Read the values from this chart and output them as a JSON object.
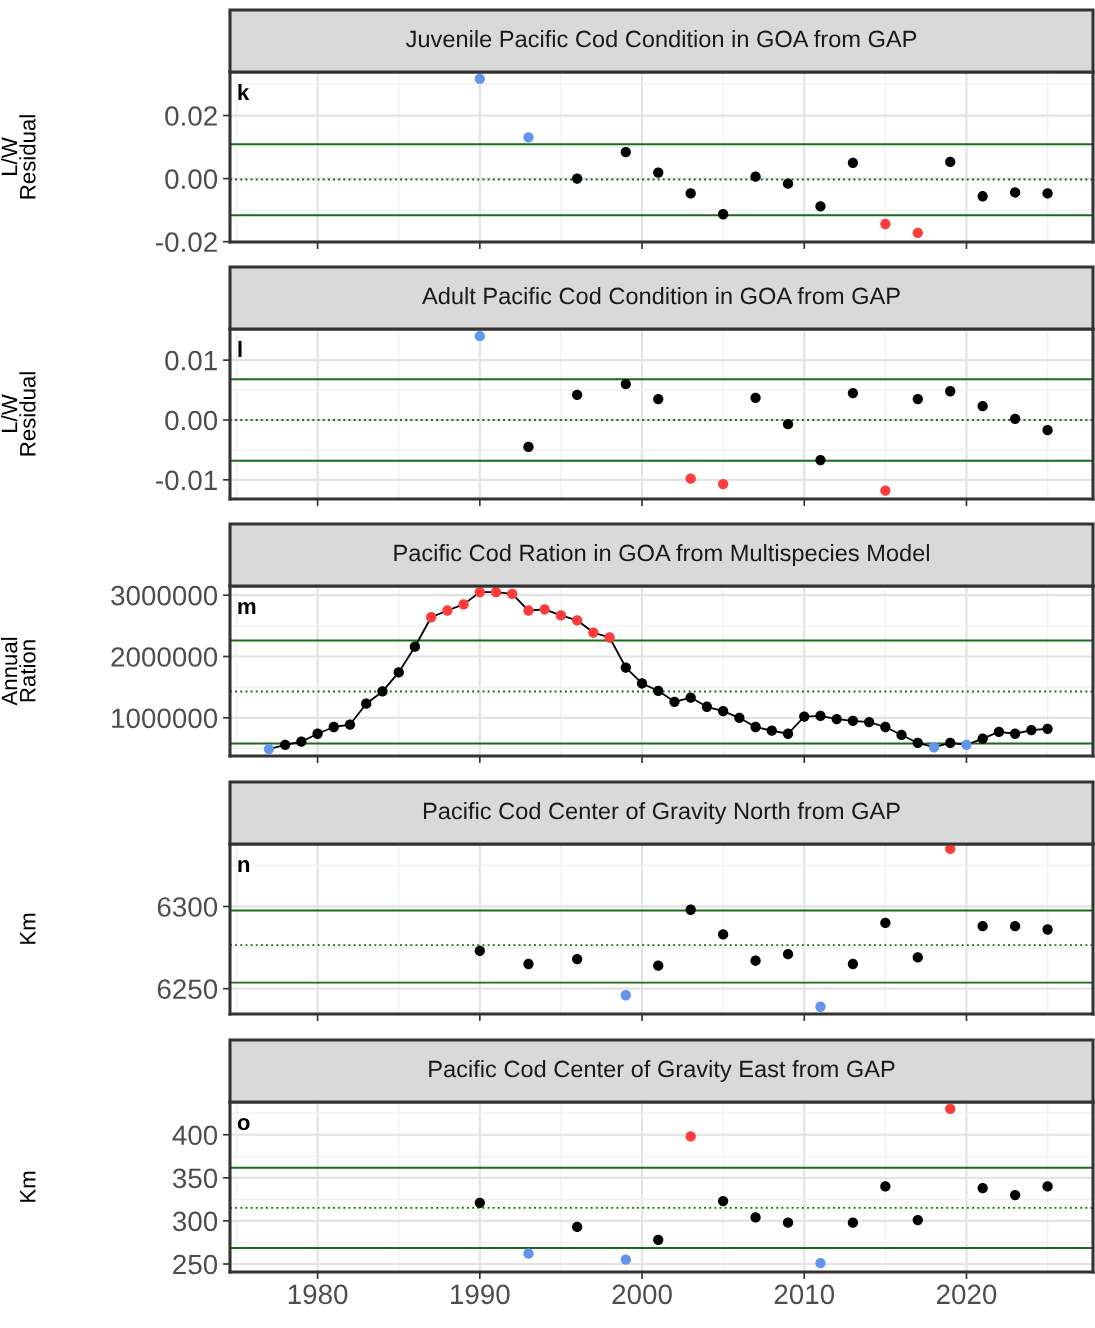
{
  "chart_data": [
    {
      "type": "scatter",
      "title": "Juvenile Pacific Cod Condition in GOA from GAP",
      "ylabel": "L/W\nResidual",
      "annotations": [
        "k"
      ],
      "x": [
        1990,
        1993,
        1996,
        1999,
        2001,
        2003,
        2005,
        2007,
        2009,
        2011,
        2013,
        2015,
        2017,
        2019,
        2021,
        2023,
        2025
      ],
      "series": [
        {
          "values": [
            0.0316,
            0.0131,
            0.0,
            0.0084,
            0.0019,
            -0.0047,
            -0.0113,
            0.0006,
            -0.0016,
            -0.0088,
            0.005,
            -0.0144,
            -0.0172,
            0.0053,
            -0.0056,
            -0.0044,
            -0.0047
          ],
          "colors": [
            "#6495ed",
            "#6495ed",
            "#000000",
            "#000000",
            "#000000",
            "#000000",
            "#000000",
            "#000000",
            "#000000",
            "#000000",
            "#000000",
            "#ff3b3b",
            "#ff3b3b",
            "#000000",
            "#000000",
            "#000000",
            "#000000"
          ]
        }
      ],
      "xlim": [
        1974.6,
        2027.8
      ],
      "xticks": [
        1980,
        1990,
        2000,
        2010,
        2020
      ],
      "ylim": [
        -0.0201,
        0.0338
      ],
      "yticks": [
        {
          "value": -0.02,
          "label": "-0.02"
        },
        {
          "value": 0.0,
          "label": "0.00"
        },
        {
          "value": 0.02,
          "label": "0.02"
        }
      ],
      "ref_lines": [
        {
          "axis": "y",
          "value": 0.0109,
          "color": "#1a6b1a",
          "line_style": "solid"
        },
        {
          "axis": "y",
          "value": -0.0003,
          "color": "#1a6b1a",
          "line_style": "dotted"
        },
        {
          "axis": "y",
          "value": -0.0116,
          "color": "#1a6b1a",
          "line_style": "solid"
        }
      ],
      "grid": true,
      "marker": "circle",
      "tick_labels": "y"
    },
    {
      "type": "scatter",
      "title": "Adult Pacific Cod Condition in GOA from GAP",
      "ylabel": "L/W\nResidual",
      "annotations": [
        "l"
      ],
      "x": [
        1990,
        1993,
        1996,
        1999,
        2001,
        2003,
        2005,
        2007,
        2009,
        2011,
        2013,
        2015,
        2017,
        2019,
        2021,
        2023,
        2025
      ],
      "series": [
        {
          "values": [
            0.014,
            -0.0045,
            0.0042,
            0.006,
            0.0035,
            -0.0098,
            -0.0107,
            0.0037,
            -0.0007,
            -0.0067,
            0.0045,
            -0.0118,
            0.0035,
            0.0048,
            0.0023,
            0.0002,
            -0.0017
          ],
          "colors": [
            "#6495ed",
            "#000000",
            "#000000",
            "#000000",
            "#000000",
            "#ff3b3b",
            "#ff3b3b",
            "#000000",
            "#000000",
            "#000000",
            "#000000",
            "#ff3b3b",
            "#000000",
            "#000000",
            "#000000",
            "#000000",
            "#000000"
          ]
        }
      ],
      "xlim": [
        1974.6,
        2027.8
      ],
      "xticks": [
        1980,
        1990,
        2000,
        2010,
        2020
      ],
      "ylim": [
        -0.0132,
        0.0152
      ],
      "yticks": [
        {
          "value": -0.01,
          "label": "-0.01"
        },
        {
          "value": 0.0,
          "label": "0.00"
        },
        {
          "value": 0.01,
          "label": "0.01"
        }
      ],
      "ref_lines": [
        {
          "axis": "y",
          "value": 0.0068,
          "color": "#1a6b1a",
          "line_style": "solid"
        },
        {
          "axis": "y",
          "value": 0.0,
          "color": "#1a6b1a",
          "line_style": "dotted"
        },
        {
          "axis": "y",
          "value": -0.0068,
          "color": "#1a6b1a",
          "line_style": "solid"
        }
      ],
      "grid": true,
      "marker": "circle",
      "tick_labels": "y"
    },
    {
      "type": "line",
      "title": "Pacific Cod Ration in GOA from Multispecies Model",
      "ylabel": "Annual\nRation",
      "annotations": [
        "m"
      ],
      "x": [
        1977,
        1978,
        1979,
        1980,
        1981,
        1982,
        1983,
        1984,
        1985,
        1986,
        1987,
        1988,
        1989,
        1990,
        1991,
        1992,
        1993,
        1994,
        1995,
        1996,
        1997,
        1998,
        1999,
        2000,
        2001,
        2002,
        2003,
        2004,
        2005,
        2006,
        2007,
        2008,
        2009,
        2010,
        2011,
        2012,
        2013,
        2014,
        2015,
        2016,
        2017,
        2018,
        2019,
        2020,
        2021,
        2022,
        2023,
        2024,
        2025
      ],
      "series": [
        {
          "color": "#000000",
          "values": [
            490000,
            560000,
            610000,
            740000,
            850000,
            890000,
            1230000,
            1430000,
            1740000,
            2160000,
            2640000,
            2750000,
            2850000,
            3050000,
            3050000,
            3020000,
            2750000,
            2770000,
            2670000,
            2590000,
            2390000,
            2310000,
            1820000,
            1560000,
            1440000,
            1260000,
            1330000,
            1180000,
            1110000,
            1000000,
            850000,
            790000,
            740000,
            1020000,
            1030000,
            980000,
            950000,
            930000,
            850000,
            720000,
            590000,
            520000,
            590000,
            560000,
            660000,
            770000,
            740000,
            800000,
            820000
          ],
          "colors": [
            "#6495ed",
            "#000000",
            "#000000",
            "#000000",
            "#000000",
            "#000000",
            "#000000",
            "#000000",
            "#000000",
            "#000000",
            "#ff3b3b",
            "#ff3b3b",
            "#ff3b3b",
            "#ff3b3b",
            "#ff3b3b",
            "#ff3b3b",
            "#ff3b3b",
            "#ff3b3b",
            "#ff3b3b",
            "#ff3b3b",
            "#ff3b3b",
            "#ff3b3b",
            "#000000",
            "#000000",
            "#000000",
            "#000000",
            "#000000",
            "#000000",
            "#000000",
            "#000000",
            "#000000",
            "#000000",
            "#000000",
            "#000000",
            "#000000",
            "#000000",
            "#000000",
            "#000000",
            "#000000",
            "#000000",
            "#000000",
            "#6495ed",
            "#000000",
            "#6495ed",
            "#000000",
            "#000000",
            "#000000",
            "#000000",
            "#000000"
          ]
        }
      ],
      "xlim": [
        1974.6,
        2027.8
      ],
      "xticks": [
        1980,
        1990,
        2000,
        2010,
        2020
      ],
      "ylim": [
        377000,
        3150000
      ],
      "yticks": [
        1000000,
        2000000,
        3000000
      ],
      "ref_lines": [
        {
          "axis": "y",
          "value": 2260000,
          "color": "#1a6b1a",
          "line_style": "solid"
        },
        {
          "axis": "y",
          "value": 1430000,
          "color": "#1a6b1a",
          "line_style": "dotted"
        },
        {
          "axis": "y",
          "value": 580000,
          "color": "#1a6b1a",
          "line_style": "solid"
        }
      ],
      "grid": true,
      "marker": "circle",
      "line_style": "solid",
      "tick_labels": "y"
    },
    {
      "type": "scatter",
      "title": "Pacific Cod Center of Gravity North from GAP",
      "ylabel": "Km",
      "annotations": [
        "n"
      ],
      "x": [
        1990,
        1993,
        1996,
        1999,
        2001,
        2003,
        2005,
        2007,
        2009,
        2011,
        2013,
        2015,
        2017,
        2019,
        2021,
        2023,
        2025
      ],
      "series": [
        {
          "values": [
            6273,
            6265,
            6268,
            6246,
            6264,
            6298,
            6283,
            6267,
            6271,
            6239,
            6265,
            6290,
            6269,
            6335,
            6288,
            6288,
            6286
          ],
          "colors": [
            "#000000",
            "#000000",
            "#000000",
            "#6495ed",
            "#000000",
            "#000000",
            "#000000",
            "#000000",
            "#000000",
            "#6495ed",
            "#000000",
            "#000000",
            "#000000",
            "#ff3b3b",
            "#000000",
            "#000000",
            "#000000"
          ]
        }
      ],
      "xlim": [
        1974.6,
        2027.8
      ],
      "xticks": [
        1980,
        1990,
        2000,
        2010,
        2020
      ],
      "ylim": [
        6234.6,
        6338
      ],
      "yticks": [
        6250,
        6300
      ],
      "ref_lines": [
        {
          "axis": "y",
          "value": 6297.5,
          "color": "#1a6b1a",
          "line_style": "solid"
        },
        {
          "axis": "y",
          "value": 6276.5,
          "color": "#1a6b1a",
          "line_style": "dotted"
        },
        {
          "axis": "y",
          "value": 6253.7,
          "color": "#1a6b1a",
          "line_style": "solid"
        }
      ],
      "grid": true,
      "marker": "circle",
      "tick_labels": "y"
    },
    {
      "type": "scatter",
      "title": "Pacific Cod Center of Gravity East from GAP",
      "ylabel": "Km",
      "annotations": [
        "o"
      ],
      "x": [
        1990,
        1993,
        1996,
        1999,
        2001,
        2003,
        2005,
        2007,
        2009,
        2011,
        2013,
        2015,
        2017,
        2019,
        2021,
        2023,
        2025
      ],
      "series": [
        {
          "values": [
            321,
            262,
            293,
            255,
            278,
            398,
            323,
            304,
            298,
            251,
            298,
            340,
            301,
            430,
            338,
            330,
            340
          ],
          "colors": [
            "#000000",
            "#6495ed",
            "#000000",
            "#6495ed",
            "#000000",
            "#ff3b3b",
            "#000000",
            "#000000",
            "#000000",
            "#6495ed",
            "#000000",
            "#000000",
            "#000000",
            "#ff3b3b",
            "#000000",
            "#000000",
            "#000000"
          ]
        }
      ],
      "xlim": [
        1974.6,
        2027.8
      ],
      "xticks": [
        1980,
        1990,
        2000,
        2010,
        2020
      ],
      "ylim": [
        240.7,
        438
      ],
      "yticks": [
        250,
        300,
        350,
        400
      ],
      "ref_lines": [
        {
          "axis": "y",
          "value": 361.6,
          "color": "#1a6b1a",
          "line_style": "solid"
        },
        {
          "axis": "y",
          "value": 315.1,
          "color": "#1a6b1a",
          "line_style": "dotted"
        },
        {
          "axis": "y",
          "value": 268.6,
          "color": "#1a6b1a",
          "line_style": "solid"
        }
      ],
      "grid": true,
      "marker": "circle"
    }
  ]
}
